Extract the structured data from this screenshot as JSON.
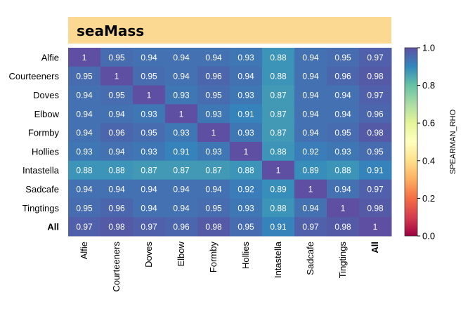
{
  "title": "seaMass",
  "chart_data": {
    "type": "heatmap",
    "title": "seaMass",
    "rows": [
      "Alfie",
      "Courteeners",
      "Doves",
      "Elbow",
      "Formby",
      "Hollies",
      "Intastella",
      "Sadcafe",
      "Tingtings",
      "All"
    ],
    "cols": [
      "Alfie",
      "Courteeners",
      "Doves",
      "Elbow",
      "Formby",
      "Hollies",
      "Intastella",
      "Sadcafe",
      "Tingtings",
      "All"
    ],
    "bold_labels": [
      "All"
    ],
    "values": [
      [
        1,
        0.95,
        0.94,
        0.94,
        0.94,
        0.93,
        0.88,
        0.94,
        0.95,
        0.97
      ],
      [
        0.95,
        1,
        0.95,
        0.94,
        0.96,
        0.94,
        0.88,
        0.94,
        0.96,
        0.98
      ],
      [
        0.94,
        0.95,
        1,
        0.93,
        0.95,
        0.93,
        0.87,
        0.94,
        0.94,
        0.97
      ],
      [
        0.94,
        0.94,
        0.93,
        1,
        0.93,
        0.91,
        0.87,
        0.94,
        0.94,
        0.96
      ],
      [
        0.94,
        0.96,
        0.95,
        0.93,
        1,
        0.93,
        0.87,
        0.94,
        0.95,
        0.98
      ],
      [
        0.93,
        0.94,
        0.93,
        0.91,
        0.93,
        1,
        0.88,
        0.92,
        0.93,
        0.95
      ],
      [
        0.88,
        0.88,
        0.87,
        0.87,
        0.87,
        0.88,
        1,
        0.89,
        0.88,
        0.91
      ],
      [
        0.94,
        0.94,
        0.94,
        0.94,
        0.94,
        0.92,
        0.89,
        1,
        0.94,
        0.97
      ],
      [
        0.95,
        0.96,
        0.94,
        0.94,
        0.95,
        0.93,
        0.88,
        0.94,
        1,
        0.98
      ],
      [
        0.97,
        0.98,
        0.97,
        0.96,
        0.98,
        0.95,
        0.91,
        0.97,
        0.98,
        1
      ]
    ],
    "colorbar": {
      "label": "SPEARMAN_RHO",
      "min": 0.0,
      "max": 1.0,
      "ticks": [
        "0.0",
        "0.2",
        "0.4",
        "0.6",
        "0.8",
        "1.0"
      ],
      "colormap": "Spectral"
    },
    "colors": {
      "title_bar": "#fcd993"
    }
  }
}
